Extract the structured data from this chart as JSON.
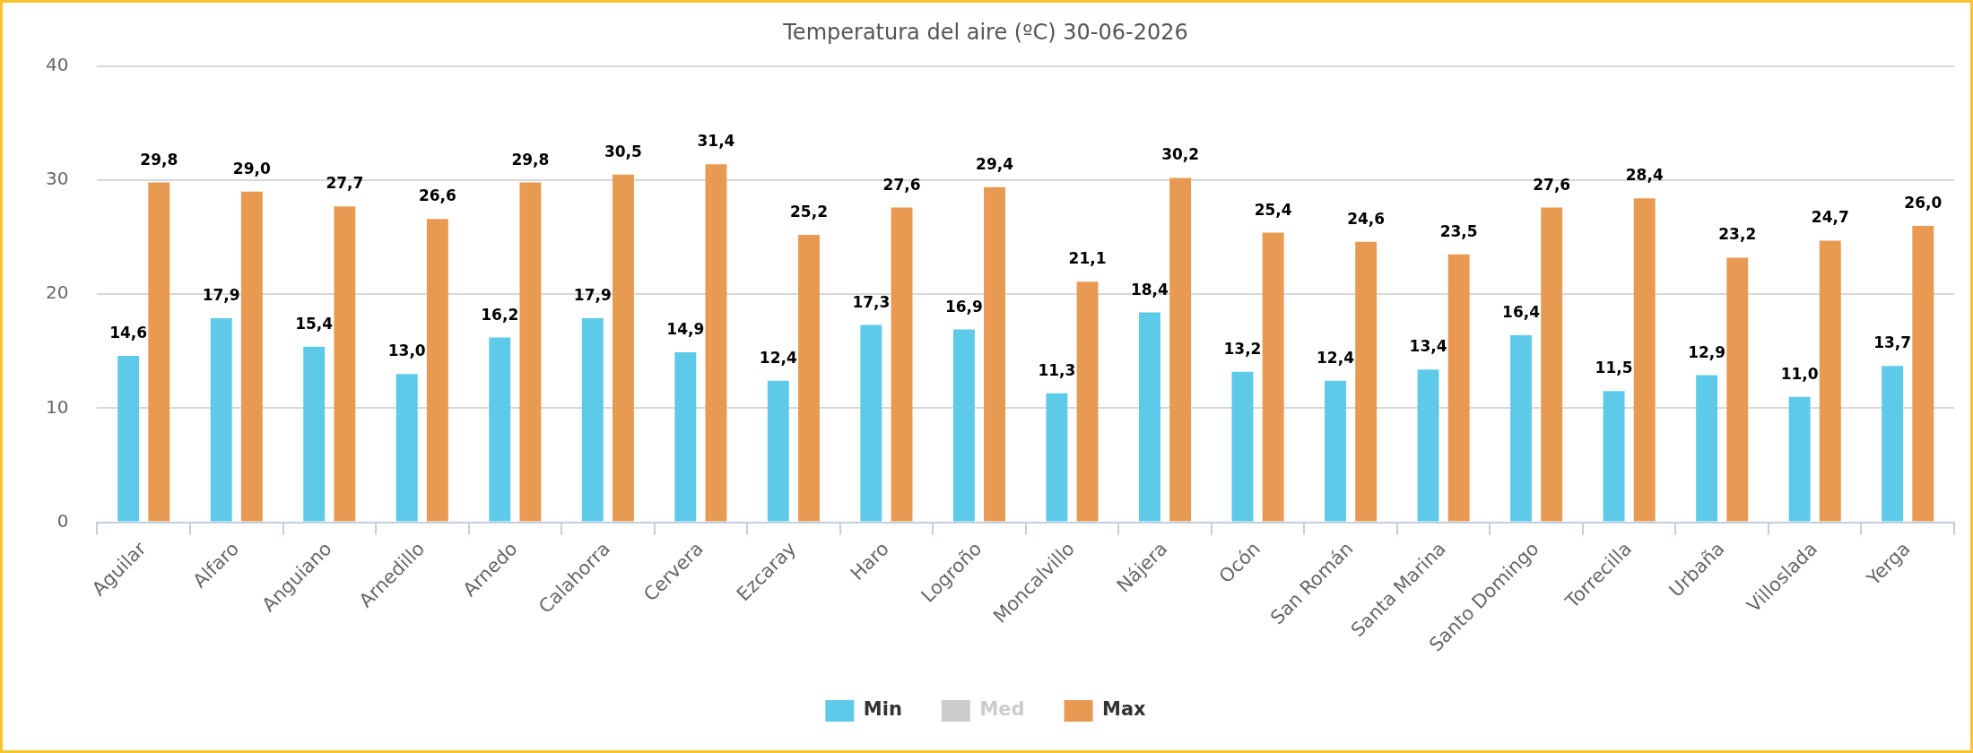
{
  "chart_data": {
    "type": "bar",
    "title": "Temperatura del aire (ºC) 30-06-2026",
    "categories": [
      "Aguilar",
      "Alfaro",
      "Anguiano",
      "Arnedillo",
      "Arnedo",
      "Calahorra",
      "Cervera",
      "Ezcaray",
      "Haro",
      "Logroño",
      "Moncalvillo",
      "Nájera",
      "Ocón",
      "San Román",
      "Santa Marina",
      "Santo Domingo",
      "Torrecilla",
      "Urbaña",
      "Villoslada",
      "Yerga"
    ],
    "series": [
      {
        "name": "Min",
        "color": "#5ccae8",
        "values": [
          14.6,
          17.9,
          15.4,
          13.0,
          16.2,
          17.9,
          14.9,
          12.4,
          17.3,
          16.9,
          11.3,
          18.4,
          13.2,
          12.4,
          13.4,
          16.4,
          11.5,
          12.9,
          11.0,
          13.7
        ],
        "value_labels": [
          "14,6",
          "17,9",
          "15,4",
          "13,0",
          "16,2",
          "17,9",
          "14,9",
          "12,4",
          "17,3",
          "16,9",
          "11,3",
          "18,4",
          "13,2",
          "12,4",
          "13,4",
          "16,4",
          "11,5",
          "12,9",
          "11,0",
          "13,7"
        ]
      },
      {
        "name": "Med",
        "color": "#cccccc",
        "values": [
          null,
          null,
          null,
          null,
          null,
          null,
          null,
          null,
          null,
          null,
          null,
          null,
          null,
          null,
          null,
          null,
          null,
          null,
          null,
          null
        ]
      },
      {
        "name": "Max",
        "color": "#e99a52",
        "values": [
          29.8,
          29.0,
          27.7,
          26.6,
          29.8,
          30.5,
          31.4,
          25.2,
          27.6,
          29.4,
          21.1,
          30.2,
          25.4,
          24.6,
          23.5,
          27.6,
          28.4,
          23.2,
          24.7,
          26.0
        ],
        "value_labels": [
          "29,8",
          "29,0",
          "27,7",
          "26,6",
          "29,8",
          "30,5",
          "31,4",
          "25,2",
          "27,6",
          "29,4",
          "21,1",
          "30,2",
          "25,4",
          "24,6",
          "23,5",
          "27,6",
          "28,4",
          "23,2",
          "24,7",
          "26,0"
        ]
      }
    ],
    "ylim": [
      0,
      40
    ],
    "yticks": [
      0,
      10,
      20,
      30,
      40
    ],
    "grid": "y",
    "legend": "bottom"
  }
}
